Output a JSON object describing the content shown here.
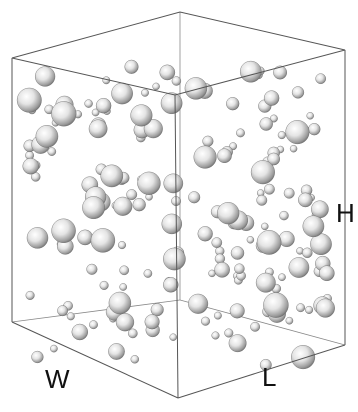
{
  "labels": {
    "width": "W",
    "length": "L",
    "height": "H"
  }
}
